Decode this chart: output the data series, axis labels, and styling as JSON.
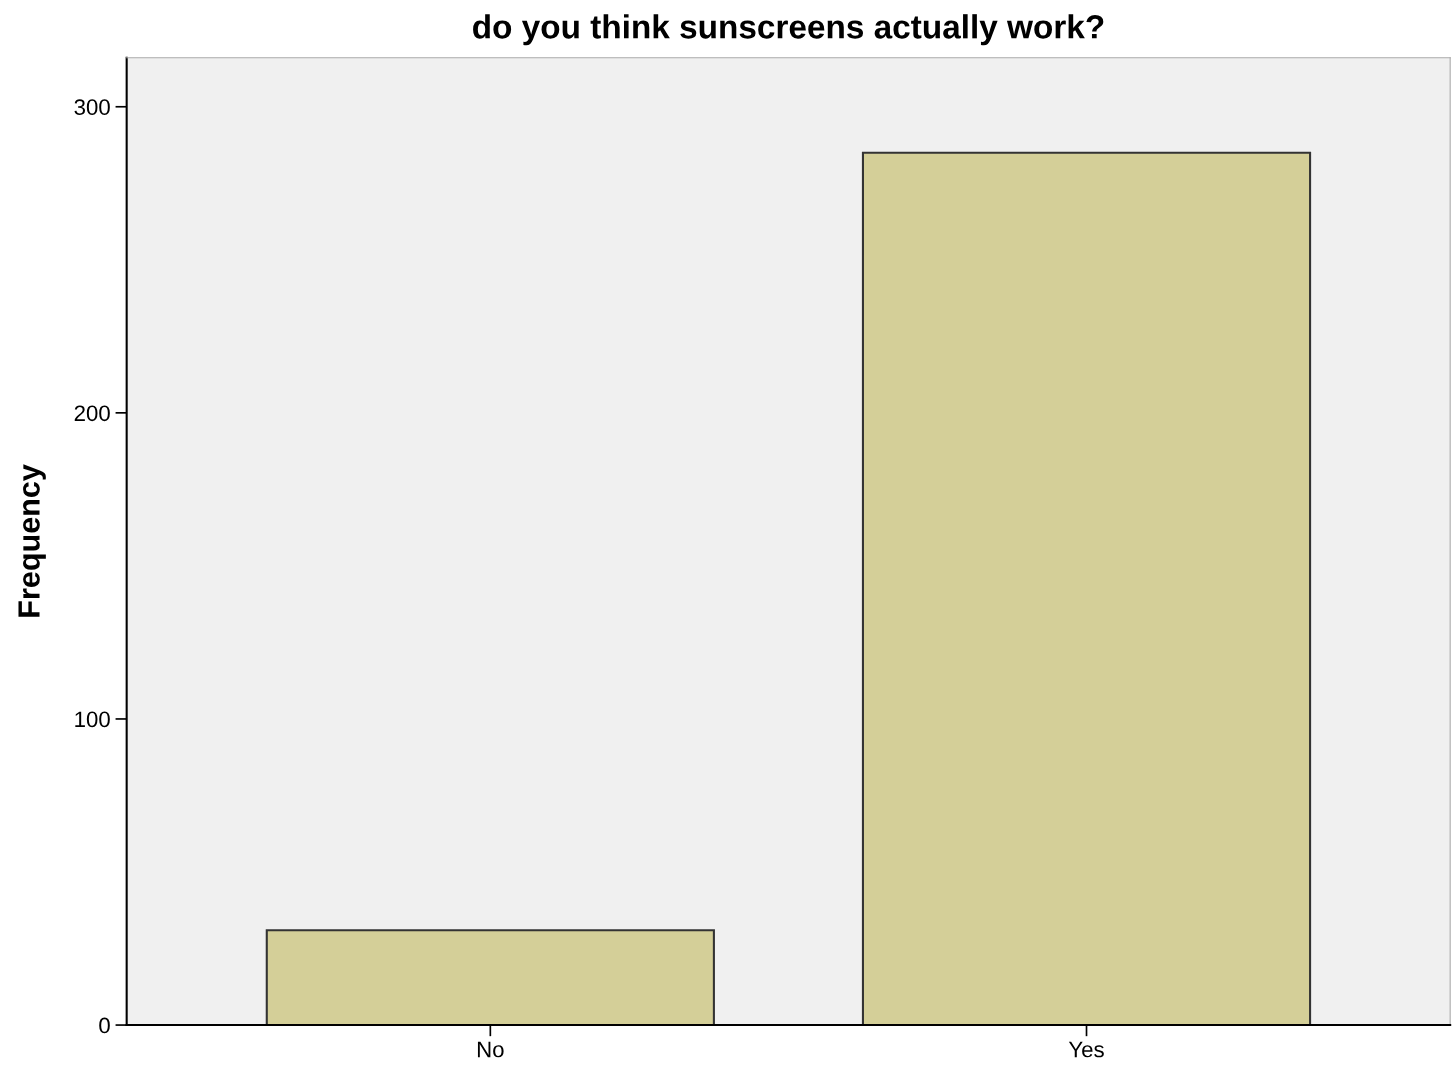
{
  "chart_data": {
    "type": "bar",
    "title": "do you think sunscreens actually work?",
    "ylabel": "Frequency",
    "categories": [
      "No",
      "Yes"
    ],
    "values": [
      31,
      285
    ],
    "color": "#d4cf98",
    "ylim": [
      0,
      316
    ],
    "yticks": [
      0,
      100,
      200,
      300
    ],
    "grid": false,
    "legend": false
  }
}
